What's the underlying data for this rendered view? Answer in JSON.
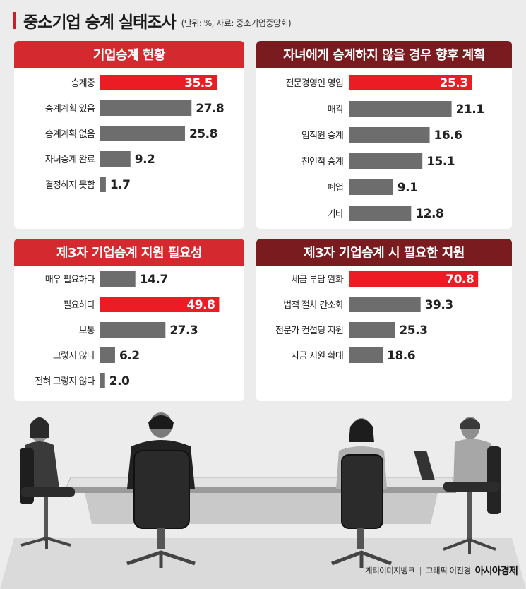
{
  "header": {
    "title": "중소기업 승계 실태조사",
    "subtitle": "(단위: %, 자료: 중소기업중앙회)"
  },
  "colors": {
    "highlight": "#ec1c24",
    "bar": "#6d6d6d",
    "head_red": "#d42a2f",
    "head_dark": "#7a1b1f",
    "accent": "#c8202a"
  },
  "credits": {
    "source": "게티이미지뱅크",
    "graphic": "그래픽 이진경",
    "brand": "아시아경제"
  },
  "chart_data": [
    {
      "type": "bar",
      "orientation": "horizontal",
      "title": "기업승계 현황",
      "categories": [
        "승계중",
        "승계계획 있음",
        "승계계획 없음",
        "자녀승계 완료",
        "결정하지 못함"
      ],
      "values": [
        35.5,
        27.8,
        25.8,
        9.2,
        1.7
      ],
      "highlight_index": 0,
      "xlim": [
        0,
        40
      ]
    },
    {
      "type": "bar",
      "orientation": "horizontal",
      "title": "자녀에게 승계하지 않을 경우 향후 계획",
      "categories": [
        "전문경영인 영입",
        "매각",
        "임직원 승계",
        "친인척 승계",
        "폐업",
        "기타"
      ],
      "values": [
        25.3,
        21.1,
        16.6,
        15.1,
        9.1,
        12.8
      ],
      "highlight_index": 0,
      "xlim": [
        0,
        30
      ]
    },
    {
      "type": "bar",
      "orientation": "horizontal",
      "title": "제3자 기업승계 지원 필요성",
      "categories": [
        "매우 필요하다",
        "필요하다",
        "보통",
        "그렇지 않다",
        "전혀 그렇지 않다"
      ],
      "values": [
        14.7,
        49.8,
        27.3,
        6.2,
        2.0
      ],
      "value_labels": [
        "14.7",
        "49.8",
        "27.3",
        "6.2",
        "2.0"
      ],
      "highlight_index": 1,
      "xlim": [
        0,
        55
      ]
    },
    {
      "type": "bar",
      "orientation": "horizontal",
      "title": "제3자 기업승계 시 필요한 지원",
      "categories": [
        "세금 부담 완화",
        "법적 절차 간소화",
        "전문가 컨설팅 지원",
        "자금 지원 확대"
      ],
      "values": [
        70.8,
        39.3,
        25.3,
        18.6
      ],
      "highlight_index": 0,
      "xlim": [
        0,
        80
      ]
    }
  ]
}
